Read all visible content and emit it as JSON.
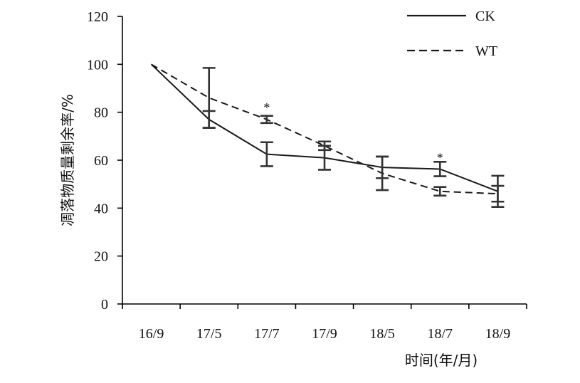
{
  "chart_data": {
    "type": "line",
    "categories": [
      "16/9",
      "17/5",
      "17/7",
      "17/9",
      "18/5",
      "18/7",
      "18/9"
    ],
    "xlabel": "时间(年/月)",
    "ylabel": "凋落物质量剩余率/%",
    "ylim": [
      0,
      120
    ],
    "yticks": [
      "0",
      "20",
      "40",
      "60",
      "80",
      "100",
      "120"
    ],
    "grid": false,
    "legend_position": "top-right",
    "series": [
      {
        "name": "CK",
        "line_style": "solid",
        "color": "#1a1a1a",
        "values": [
          100,
          77,
          62.5,
          61,
          57,
          56.3,
          47
        ],
        "errors": [
          0,
          3.5,
          5,
          5,
          4.5,
          3,
          6.5
        ]
      },
      {
        "name": "WT",
        "line_style": "dashed",
        "color": "#1a1a1a",
        "values": [
          100,
          86,
          77,
          66,
          54.5,
          47,
          46
        ],
        "errors": [
          0,
          12.5,
          1.5,
          1.8,
          7,
          1.8,
          3.3
        ]
      }
    ],
    "annotations": [
      {
        "text": "*",
        "category": "17/7",
        "y": 82
      },
      {
        "text": "*",
        "category": "18/7",
        "y": 61
      }
    ]
  }
}
